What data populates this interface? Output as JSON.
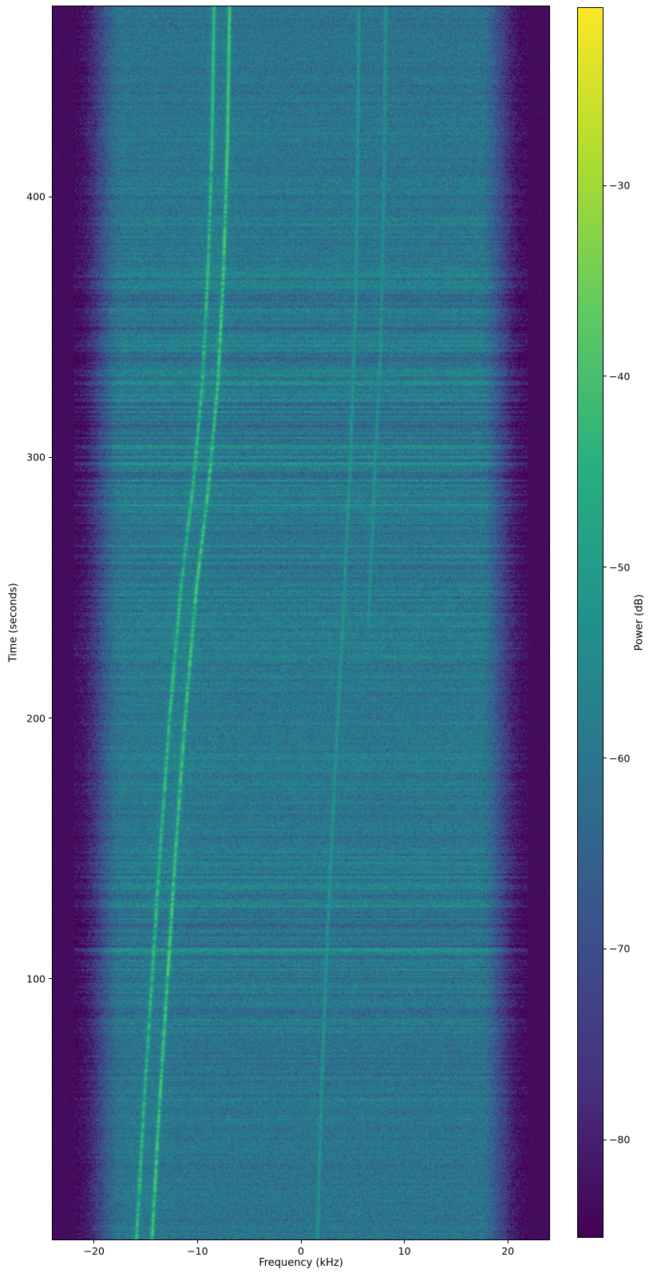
{
  "chart_data": {
    "type": "heatmap",
    "subtype": "spectrogram-waterfall",
    "title": "",
    "xlabel": "Frequency (kHz)",
    "ylabel": "Time (seconds)",
    "x_range_khz": [
      -24,
      24
    ],
    "y_range_s": [
      0,
      473
    ],
    "grid": false,
    "x_ticks": [
      {
        "value": -20,
        "label": "−20"
      },
      {
        "value": -10,
        "label": "−10"
      },
      {
        "value": 0,
        "label": "0"
      },
      {
        "value": 10,
        "label": "10"
      },
      {
        "value": 20,
        "label": "20"
      }
    ],
    "y_ticks": [
      {
        "value": 100,
        "label": "100"
      },
      {
        "value": 200,
        "label": "200"
      },
      {
        "value": 300,
        "label": "300"
      },
      {
        "value": 400,
        "label": "400"
      }
    ],
    "colorbar": {
      "label": "Power (dB)",
      "colormap": "viridis",
      "vmin_db": -85.1,
      "vmax_db": -20.7,
      "ticks": [
        {
          "value": -30,
          "label": "−30"
        },
        {
          "value": -40,
          "label": "−40"
        },
        {
          "value": -50,
          "label": "−50"
        },
        {
          "value": -60,
          "label": "−60"
        },
        {
          "value": -70,
          "label": "−70"
        },
        {
          "value": -80,
          "label": "−80"
        }
      ]
    },
    "background_model": {
      "noise_floor_db": -59.5,
      "noise_spread_db": 6.5,
      "speckle_probability": 0.055,
      "edge_rolloff_start_khz": 17.2,
      "edge_rolloff_end_khz": 21.9,
      "edge_rolloff_depth_db": 25,
      "edge_floor_db": -84.5,
      "band_noise_amplitude_db": 1.5,
      "band_strong_regions_s": [
        [
          80,
          150
        ],
        [
          250,
          360
        ]
      ]
    },
    "traces": [
      {
        "name": "doppler-carrier-upper",
        "peak_db": -37,
        "width_khz": 0.13,
        "dash_depth_db": 10,
        "points_time_s_freq_khz": [
          [
            0,
            -14.4
          ],
          [
            50,
            -13.7
          ],
          [
            100,
            -12.9
          ],
          [
            150,
            -12.1
          ],
          [
            200,
            -11.2
          ],
          [
            250,
            -10.1
          ],
          [
            290,
            -8.9
          ],
          [
            330,
            -8.0
          ],
          [
            370,
            -7.5
          ],
          [
            420,
            -7.1
          ],
          [
            473,
            -6.9
          ]
        ]
      },
      {
        "name": "doppler-carrier-lower",
        "peak_db": -40,
        "width_khz": 0.13,
        "dash_depth_db": 10,
        "points_time_s_freq_khz": [
          [
            0,
            -15.9
          ],
          [
            50,
            -15.2
          ],
          [
            100,
            -14.4
          ],
          [
            150,
            -13.6
          ],
          [
            200,
            -12.7
          ],
          [
            250,
            -11.6
          ],
          [
            290,
            -10.4
          ],
          [
            330,
            -9.5
          ],
          [
            370,
            -9.0
          ],
          [
            420,
            -8.6
          ],
          [
            473,
            -8.4
          ]
        ]
      },
      {
        "name": "faint-harmonic-low",
        "peak_db": -50.5,
        "width_khz": 0.11,
        "dash_depth_db": 4,
        "points_time_s_freq_khz": [
          [
            0,
            1.6
          ],
          [
            60,
            2.0
          ],
          [
            120,
            2.6
          ],
          [
            180,
            3.3
          ],
          [
            240,
            4.1
          ],
          [
            300,
            4.8
          ],
          [
            360,
            5.3
          ],
          [
            420,
            5.5
          ],
          [
            473,
            5.6
          ]
        ]
      },
      {
        "name": "faint-harmonic-high",
        "peak_db": -51.5,
        "width_khz": 0.11,
        "dash_depth_db": 4,
        "points_time_s_freq_khz": [
          [
            235,
            6.5
          ],
          [
            290,
            7.1
          ],
          [
            340,
            7.7
          ],
          [
            400,
            8.0
          ],
          [
            473,
            8.2
          ]
        ]
      }
    ],
    "viridis_anchors": [
      [
        0.0,
        "#440154"
      ],
      [
        0.125,
        "#46327e"
      ],
      [
        0.25,
        "#3b528b"
      ],
      [
        0.375,
        "#2c728e"
      ],
      [
        0.5,
        "#21918c"
      ],
      [
        0.625,
        "#28ae80"
      ],
      [
        0.75,
        "#5ec962"
      ],
      [
        0.875,
        "#addc30"
      ],
      [
        1.0,
        "#fde725"
      ]
    ]
  },
  "figure": {
    "background": "#ffffff"
  }
}
